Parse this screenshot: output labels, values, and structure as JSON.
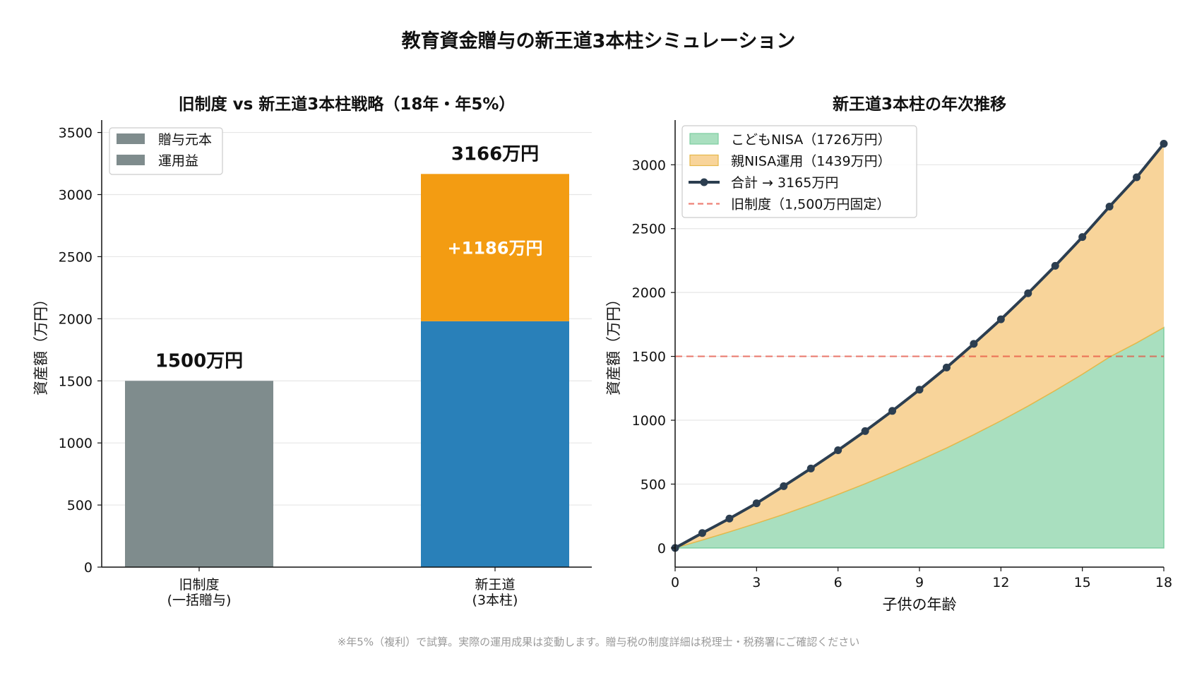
{
  "suptitle": "教育資金贈与の新王道3本柱シミュレーション",
  "footnote": "※年5%（複利）で試算。実際の運用成果は変動します。贈与税の制度詳細は税理士・税務署にご確認ください",
  "colors": {
    "gray": "#7f8c8d",
    "blue": "#2980b9",
    "orange": "#f39c12",
    "green": "#a9dfbf",
    "green_line": "#7dcea0",
    "orange_fill": "#f8d49a",
    "orange_line": "#e6b84a",
    "total": "#2c3e50",
    "old": "#e74c3c"
  },
  "chart_data": [
    {
      "type": "bar",
      "title": "旧制度 vs 新王道3本柱戦略（18年・年5%）",
      "ylabel": "資産額（万円）",
      "ylim": [
        0,
        3600
      ],
      "yticks": [
        "0",
        "500",
        "1000",
        "1500",
        "2000",
        "2500",
        "3000",
        "3500"
      ],
      "categories": [
        "旧制度\n(一括贈与)",
        "新王道\n(3本柱)"
      ],
      "series": [
        {
          "name": "贈与元本",
          "values": [
            1500,
            1980
          ]
        },
        {
          "name": "運用益",
          "values": [
            0,
            1186
          ]
        }
      ],
      "total_labels": [
        "1500万円",
        "3166万円"
      ],
      "gain_label": "+1186万円",
      "grid": true,
      "legend": "top-left"
    },
    {
      "type": "area",
      "title": "新王道3本柱の年次推移",
      "xlabel": "子供の年齢",
      "ylabel": "資産額（万円）",
      "xlim": [
        0,
        18
      ],
      "ylim": [
        -150,
        3350
      ],
      "xticks": [
        "0",
        "3",
        "6",
        "9",
        "12",
        "15",
        "18"
      ],
      "yticks": [
        "0",
        "500",
        "1000",
        "1500",
        "2000",
        "2500",
        "3000"
      ],
      "x": [
        0,
        1,
        2,
        3,
        4,
        5,
        6,
        7,
        8,
        9,
        10,
        11,
        12,
        13,
        14,
        15,
        16,
        17,
        18
      ],
      "series": [
        {
          "name": "こどもNISA（1726万円）",
          "values": [
            0,
            62,
            126,
            193,
            263,
            339,
            419,
            503,
            592,
            686,
            783,
            887,
            996,
            1111,
            1233,
            1360,
            1495,
            1606,
            1726
          ]
        },
        {
          "name": "親NISA運用（1439万円）",
          "values": [
            0,
            55,
            104,
            157,
            221,
            283,
            346,
            412,
            481,
            553,
            630,
            711,
            794,
            883,
            976,
            1074,
            1178,
            1296,
            1439
          ]
        },
        {
          "name": "合計 → 3165万円",
          "values": [
            0,
            117,
            230,
            350,
            484,
            622,
            765,
            915,
            1073,
            1239,
            1413,
            1598,
            1790,
            1994,
            2209,
            2434,
            2673,
            2902,
            3165
          ]
        }
      ],
      "reference_line": {
        "name": "旧制度（1,500万円固定）",
        "value": 1500
      },
      "grid": true,
      "legend": "top-left"
    }
  ]
}
